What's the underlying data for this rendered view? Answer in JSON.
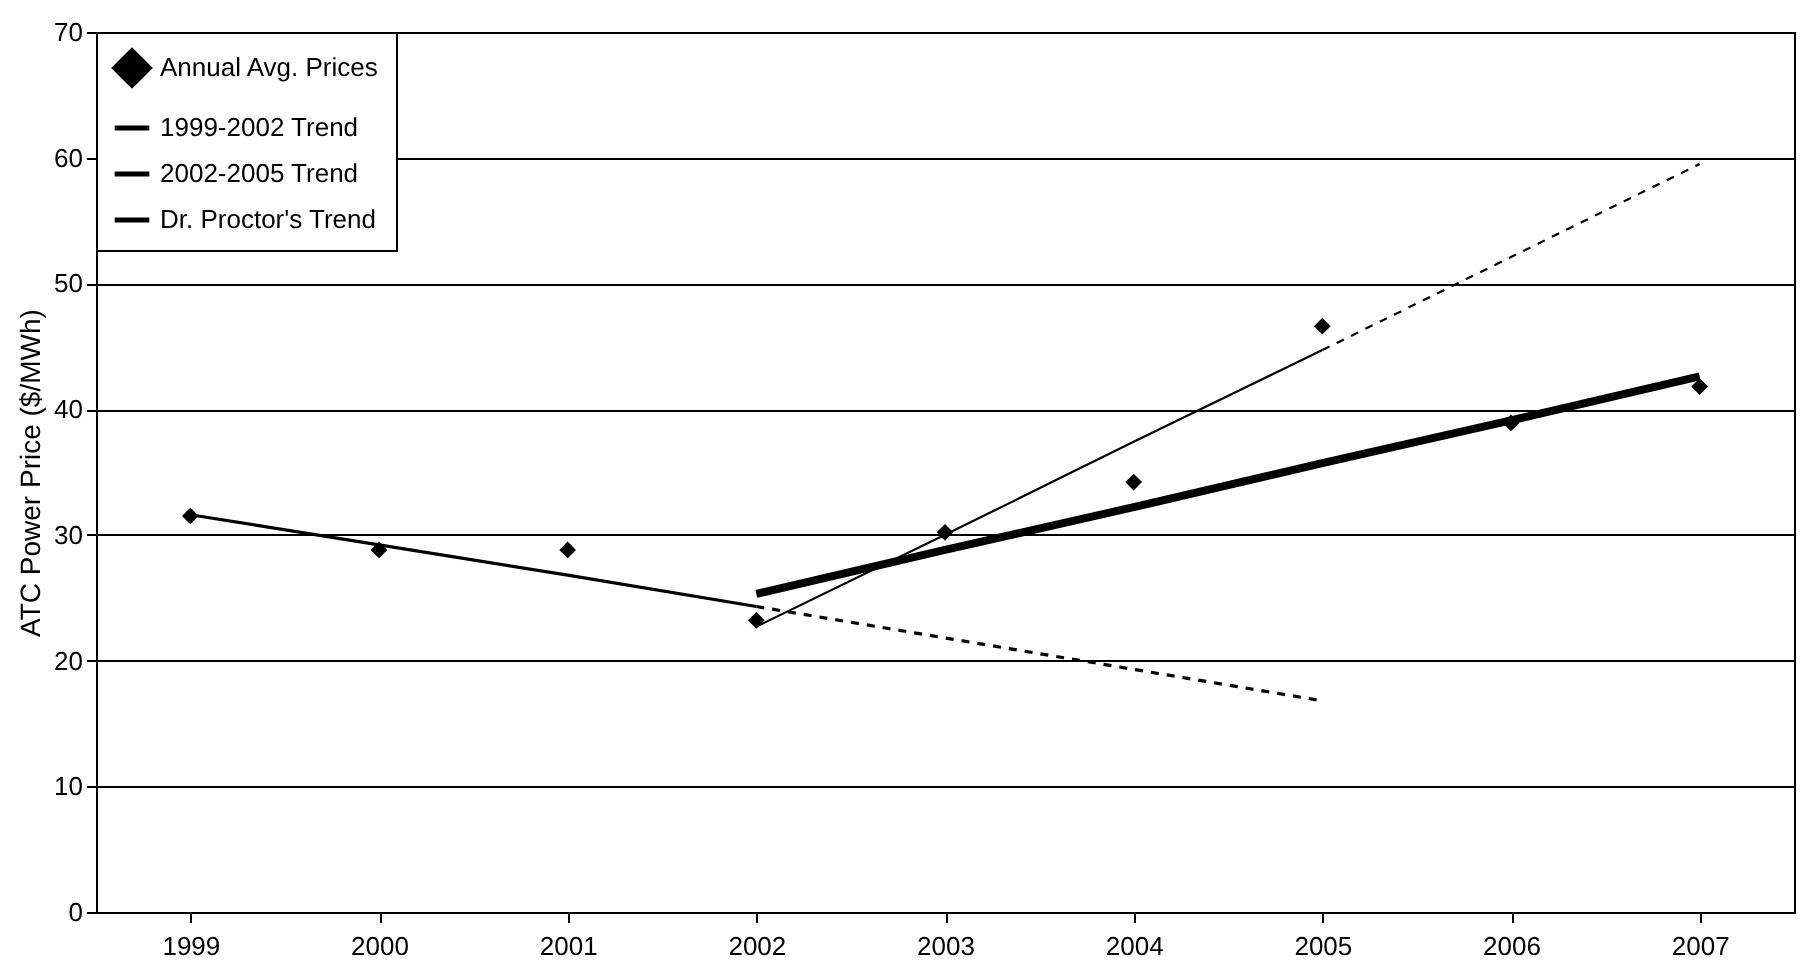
{
  "chart_data": {
    "type": "line",
    "ylabel": "ATC Power Price ($/MWh)",
    "categories": [
      "1999",
      "2000",
      "2001",
      "2002",
      "2003",
      "2004",
      "2005",
      "2006",
      "2007"
    ],
    "series": [
      {
        "name": "Annual Avg. Prices",
        "type": "scatter",
        "marker": "diamond",
        "color": "#000000",
        "values": [
          31.5,
          28.8,
          28.8,
          23.2,
          30.2,
          34.2,
          46.6,
          38.9,
          41.8
        ]
      },
      {
        "name": "1999-2002 Trend",
        "color": "#000000",
        "values": [
          31.6,
          29.2,
          26.8,
          24.3,
          null,
          null,
          null,
          null,
          null
        ]
      },
      {
        "line_style": "dashed",
        "color": "#000000",
        "values": [
          null,
          null,
          null,
          24.3,
          21.8,
          19.3,
          16.8,
          null,
          null
        ]
      },
      {
        "name": "2002-2005 Trend",
        "color": "#000000",
        "values": [
          null,
          null,
          null,
          22.7,
          30.0,
          37.4,
          44.7,
          null,
          null
        ]
      },
      {
        "line_style": "dashed",
        "color": "#000000",
        "values": [
          null,
          null,
          null,
          null,
          null,
          null,
          44.7,
          52.1,
          59.5
        ]
      },
      {
        "name": "Dr. Proctor's Trend",
        "color": "#000000",
        "values": [
          null,
          null,
          null,
          25.3,
          28.8,
          32.2,
          35.7,
          39.1,
          42.6
        ]
      }
    ],
    "ylim": [
      0,
      70
    ],
    "yticks": [
      0,
      10,
      20,
      30,
      40,
      50,
      60,
      70
    ],
    "grid": "y",
    "legend": "top left"
  }
}
